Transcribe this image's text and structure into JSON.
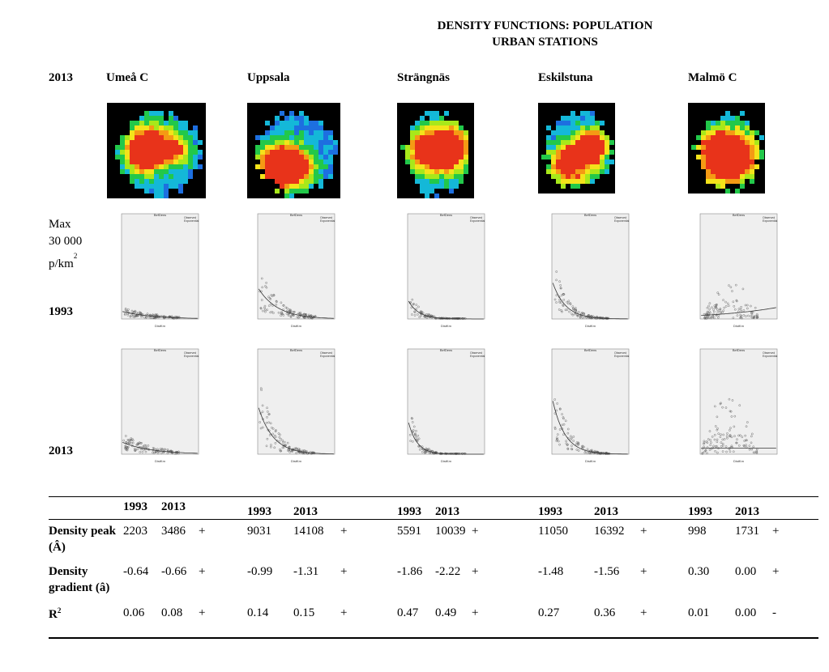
{
  "title_line1": "DENSITY FUNCTIONS: POPULATION",
  "title_line2": "URBAN STATIONS",
  "year_header": "2013",
  "side_max": "Max",
  "side_value": "30 000",
  "side_unit": "p/km",
  "side_unit_sup": "2",
  "row_label_1993": "1993",
  "row_label_2013": "2013",
  "plot_title": "BefDens",
  "legend_observed": "Observed",
  "legend_exponential": "Exponential",
  "plot_xlabel": "DistKm",
  "stations": [
    {
      "name": "Umeå C"
    },
    {
      "name": "Uppsala"
    },
    {
      "name": "Strängnäs"
    },
    {
      "name": "Eskilstuna"
    },
    {
      "name": "Malmö C"
    }
  ],
  "table": {
    "col_1993": "1993",
    "col_2013": "2013",
    "rows": [
      {
        "label_line1": "Density peak",
        "label_line2": "(Â)",
        "values": [
          [
            "2203",
            "3486",
            "+"
          ],
          [
            "9031",
            "14108",
            "+"
          ],
          [
            "5591",
            "10039",
            "+"
          ],
          [
            "11050",
            "16392",
            "+"
          ],
          [
            "998",
            "1731",
            "+"
          ]
        ]
      },
      {
        "label_line1": "Density",
        "label_line2": "gradient (â)",
        "values": [
          [
            "-0.64",
            "-0.66",
            "+"
          ],
          [
            "-0.99",
            "-1.31",
            "+"
          ],
          [
            "-1.86",
            "-2.22",
            "+"
          ],
          [
            "-1.48",
            "-1.56",
            "+"
          ],
          [
            "0.30",
            "0.00",
            "+"
          ]
        ]
      },
      {
        "label_line1": "R",
        "label_sup": "2",
        "values": [
          [
            "0.06",
            "0.08",
            "+"
          ],
          [
            "0.14",
            "0.15",
            "+"
          ],
          [
            "0.47",
            "0.49",
            "+"
          ],
          [
            "0.27",
            "0.36",
            "+"
          ],
          [
            "0.01",
            "0.00",
            "-"
          ]
        ]
      }
    ]
  },
  "chart_data": [
    {
      "type": "scatter",
      "station": "Umeå C",
      "year": "1993",
      "ylim": [
        0,
        30000
      ],
      "peak": 2203,
      "gradient": -0.64,
      "r2": 0.06
    },
    {
      "type": "scatter",
      "station": "Uppsala",
      "year": "1993",
      "ylim": [
        0,
        30000
      ],
      "peak": 9031,
      "gradient": -0.99,
      "r2": 0.14
    },
    {
      "type": "scatter",
      "station": "Strängnäs",
      "year": "1993",
      "ylim": [
        0,
        30000
      ],
      "peak": 5591,
      "gradient": -1.86,
      "r2": 0.47
    },
    {
      "type": "scatter",
      "station": "Eskilstuna",
      "year": "1993",
      "ylim": [
        0,
        30000
      ],
      "peak": 11050,
      "gradient": -1.48,
      "r2": 0.27
    },
    {
      "type": "scatter",
      "station": "Malmö C",
      "year": "1993",
      "ylim": [
        0,
        30000
      ],
      "peak": 998,
      "gradient": 0.3,
      "r2": 0.01
    },
    {
      "type": "scatter",
      "station": "Umeå C",
      "year": "2013",
      "ylim": [
        0,
        30000
      ],
      "peak": 3486,
      "gradient": -0.66,
      "r2": 0.08
    },
    {
      "type": "scatter",
      "station": "Uppsala",
      "year": "2013",
      "ylim": [
        0,
        30000
      ],
      "peak": 14108,
      "gradient": -1.31,
      "r2": 0.15
    },
    {
      "type": "scatter",
      "station": "Strängnäs",
      "year": "2013",
      "ylim": [
        0,
        30000
      ],
      "peak": 10039,
      "gradient": -2.22,
      "r2": 0.49
    },
    {
      "type": "scatter",
      "station": "Eskilstuna",
      "year": "2013",
      "ylim": [
        0,
        30000
      ],
      "peak": 16392,
      "gradient": -1.56,
      "r2": 0.36
    },
    {
      "type": "scatter",
      "station": "Malmö C",
      "year": "2013",
      "ylim": [
        0,
        30000
      ],
      "peak": 1731,
      "gradient": 0.0,
      "r2": 0.0
    }
  ]
}
